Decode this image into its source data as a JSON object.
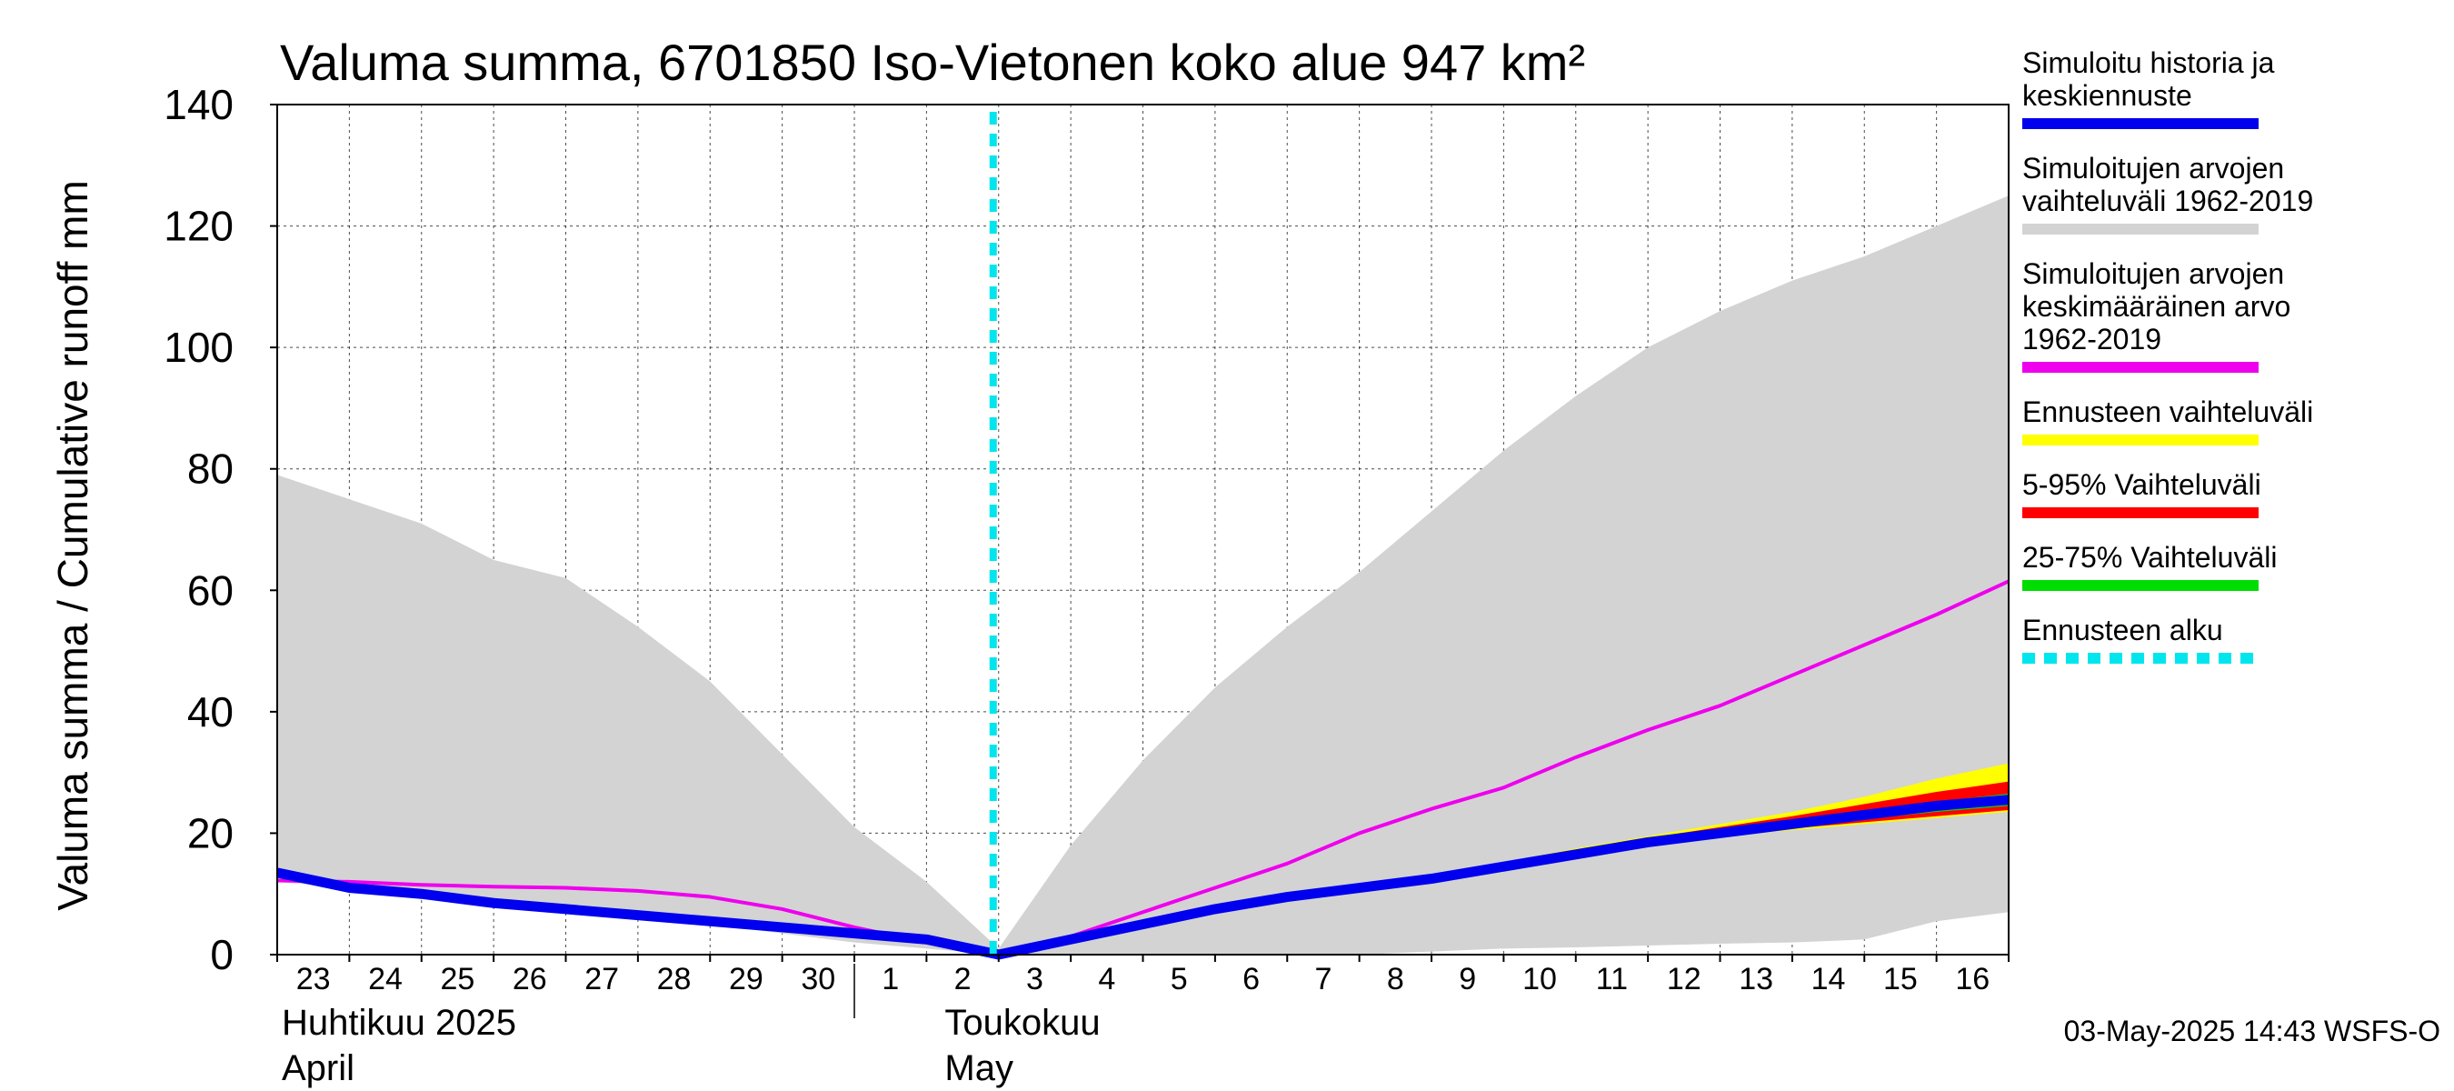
{
  "chart_data": {
    "type": "area",
    "title": "Valuma summa, 6701850 Iso-Vietonen koko alue 947 km²",
    "ylabel": "Valuma summa / Cumulative runoff    mm",
    "ylim": [
      0,
      140
    ],
    "yticks": [
      0,
      20,
      40,
      60,
      80,
      100,
      120,
      140
    ],
    "grid": true,
    "legend_position": "right",
    "x_days": [
      "23",
      "24",
      "25",
      "26",
      "27",
      "28",
      "29",
      "30",
      "1",
      "2",
      "3",
      "4",
      "5",
      "6",
      "7",
      "8",
      "9",
      "10",
      "11",
      "12",
      "13",
      "14",
      "15",
      "16"
    ],
    "month_labels": [
      {
        "line1": "Huhtikuu  2025",
        "line2": "April"
      },
      {
        "line1": "Toukokuu",
        "line2": "May"
      }
    ],
    "forecast_start": "2025-05-03",
    "x": [
      "2025-04-23",
      "2025-04-24",
      "2025-04-25",
      "2025-04-26",
      "2025-04-27",
      "2025-04-28",
      "2025-04-29",
      "2025-04-30",
      "2025-05-01",
      "2025-05-02",
      "2025-05-03",
      "2025-05-04",
      "2025-05-05",
      "2025-05-06",
      "2025-05-07",
      "2025-05-08",
      "2025-05-09",
      "2025-05-10",
      "2025-05-11",
      "2025-05-12",
      "2025-05-13",
      "2025-05-14",
      "2025-05-15",
      "2025-05-16",
      "2025-05-17"
    ],
    "series": [
      {
        "name": "Simuloitujen arvojen vaihteluväli 1962-2019",
        "color": "#d3d3d3",
        "kind": "band",
        "lower": [
          12,
          11,
          10,
          9,
          8,
          6.5,
          5,
          3.5,
          2,
          1,
          0,
          0,
          0,
          0,
          0,
          0,
          0.5,
          1,
          1.2,
          1.5,
          1.8,
          2,
          2.5,
          5.5,
          7
        ],
        "upper": [
          79,
          75,
          71,
          65,
          62,
          54,
          45,
          33,
          21,
          12,
          1,
          18,
          32,
          44,
          54,
          63,
          73,
          83,
          92,
          100,
          106,
          111,
          115,
          120,
          125
        ]
      },
      {
        "name": "Ennusteen vaihteluväli",
        "color": "#ffff00",
        "kind": "band",
        "lower": [
          null,
          null,
          null,
          null,
          null,
          null,
          null,
          null,
          null,
          null,
          0,
          2.5,
          5,
          7.5,
          9.5,
          11,
          12.5,
          14.5,
          16,
          18,
          19.5,
          20.5,
          21.5,
          22.5,
          23.5
        ],
        "upper": [
          null,
          null,
          null,
          null,
          null,
          null,
          null,
          null,
          null,
          null,
          0,
          2.6,
          5.2,
          7.8,
          9.8,
          11.5,
          13.2,
          15.2,
          17.5,
          19.5,
          21.5,
          23.5,
          26,
          29,
          31.5
        ]
      },
      {
        "name": "5-95% Vaihteluväli",
        "color": "#ff0000",
        "kind": "band",
        "lower": [
          null,
          null,
          null,
          null,
          null,
          null,
          null,
          null,
          null,
          null,
          0,
          2.5,
          5,
          7.5,
          9.5,
          11,
          12.5,
          14.5,
          16,
          18,
          19.5,
          20.8,
          21.8,
          22.8,
          23.8
        ],
        "upper": [
          null,
          null,
          null,
          null,
          null,
          null,
          null,
          null,
          null,
          null,
          0,
          2.6,
          5.2,
          7.7,
          9.7,
          11.3,
          13,
          15,
          17,
          19.2,
          21,
          22.8,
          24.8,
          26.8,
          28.5
        ]
      },
      {
        "name": "25-75% Vaihteluväli",
        "color": "#00dd00",
        "kind": "band",
        "lower": [
          null,
          null,
          null,
          null,
          null,
          null,
          null,
          null,
          null,
          null,
          0,
          2.5,
          5,
          7.5,
          9.5,
          11,
          12.5,
          14.5,
          16,
          18,
          19.5,
          21,
          22.3,
          23.5,
          24.5
        ],
        "upper": [
          null,
          null,
          null,
          null,
          null,
          null,
          null,
          null,
          null,
          null,
          0,
          2.5,
          5.1,
          7.6,
          9.6,
          11.2,
          12.8,
          14.8,
          16.8,
          18.8,
          20.5,
          22.2,
          23.8,
          25.2,
          26.5
        ]
      },
      {
        "name": "Simuloitujen arvojen keskimääräinen arvo 1962-2019",
        "color": "#ee00ee",
        "kind": "line",
        "values": [
          12.2,
          12,
          11.5,
          11.2,
          11,
          10.5,
          9.5,
          7.5,
          4.5,
          2,
          0.2,
          3,
          7,
          11,
          15,
          20,
          24,
          27.5,
          32.5,
          37,
          41,
          46,
          51,
          56,
          61.5
        ]
      },
      {
        "name": "Simuloitu historia ja keskiennuste",
        "color": "#0000ee",
        "kind": "line",
        "values": [
          13.5,
          11,
          10,
          8.5,
          7.5,
          6.5,
          5.5,
          4.5,
          3.5,
          2.5,
          0,
          2.5,
          5,
          7.5,
          9.5,
          11,
          12.5,
          14.5,
          16.5,
          18.5,
          20,
          21.5,
          23,
          24.5,
          25.5
        ]
      }
    ]
  },
  "legend": [
    {
      "label_lines": [
        "Simuloitu historia ja",
        "keskiennuste"
      ],
      "color": "#0000ee",
      "style": "solid"
    },
    {
      "label_lines": [
        "Simuloitujen arvojen",
        "vaihteluväli 1962-2019"
      ],
      "color": "#d3d3d3",
      "style": "solid"
    },
    {
      "label_lines": [
        "Simuloitujen arvojen",
        "keskimääräinen arvo",
        "   1962-2019"
      ],
      "color": "#ee00ee",
      "style": "solid"
    },
    {
      "label_lines": [
        "Ennusteen vaihteluväli"
      ],
      "color": "#ffff00",
      "style": "solid"
    },
    {
      "label_lines": [
        "5-95% Vaihteluväli"
      ],
      "color": "#ff0000",
      "style": "solid"
    },
    {
      "label_lines": [
        "25-75% Vaihteluväli"
      ],
      "color": "#00dd00",
      "style": "solid"
    },
    {
      "label_lines": [
        "Ennusteen alku"
      ],
      "color": "#00e5ee",
      "style": "dashed"
    }
  ],
  "footer": "03-May-2025 14:43 WSFS-O"
}
